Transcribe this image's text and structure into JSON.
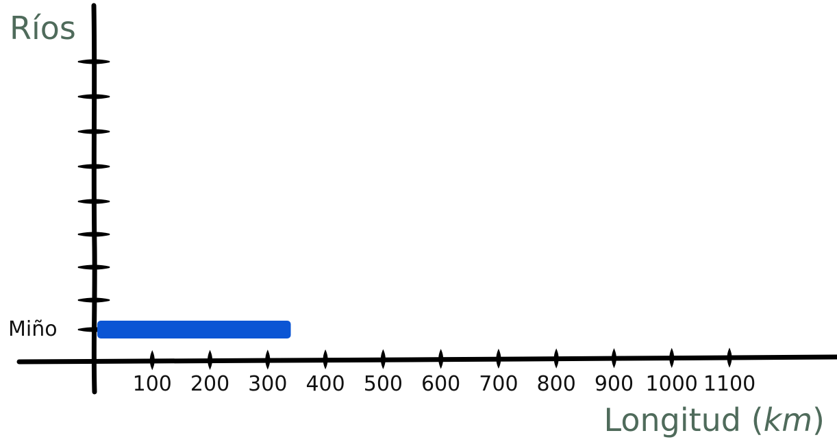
{
  "chart_data": {
    "type": "bar",
    "orientation": "horizontal",
    "ylabel": "Ríos",
    "xlabel": "Longitud",
    "xlabel_unit": "km",
    "categories": [
      "Miño"
    ],
    "values": [
      340
    ],
    "x_ticks": [
      100,
      200,
      300,
      400,
      500,
      600,
      700,
      800,
      900,
      1000,
      1100
    ],
    "xlim": [
      0,
      1100
    ],
    "bar_color": "#0b55d4",
    "axis_color": "#000000",
    "label_color": "#4f6b5b",
    "grid": false
  }
}
